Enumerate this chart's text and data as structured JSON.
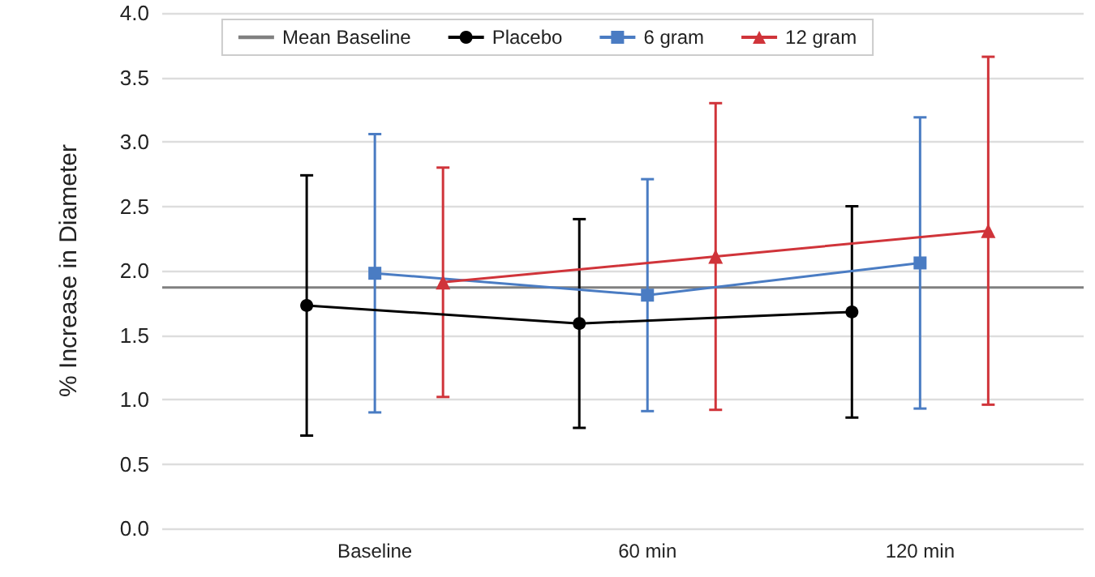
{
  "chart_data": {
    "type": "line",
    "ylabel": "% Increase in Diameter",
    "categories": [
      "Baseline",
      "60 min",
      "120 min"
    ],
    "series": [
      {
        "name": "Placebo",
        "color": "#000000",
        "marker": "circle",
        "values": [
          1.73,
          1.59,
          1.68
        ],
        "errors": [
          [
            0.72,
            2.74
          ],
          [
            0.78,
            2.4
          ],
          [
            0.86,
            2.5
          ]
        ]
      },
      {
        "name": "6 gram",
        "color": "#4a7cc3",
        "marker": "square",
        "values": [
          1.98,
          1.81,
          2.06
        ],
        "errors": [
          [
            0.9,
            3.06
          ],
          [
            0.91,
            2.71
          ],
          [
            0.93,
            3.19
          ]
        ]
      },
      {
        "name": "12 gram",
        "color": "#d0343a",
        "marker": "triangle",
        "values": [
          1.91,
          2.11,
          2.31
        ],
        "errors": [
          [
            1.02,
            2.8
          ],
          [
            0.92,
            3.3
          ],
          [
            0.96,
            3.66
          ]
        ]
      }
    ],
    "ref_lines": [
      {
        "axis": "y",
        "value": 1.87,
        "label": "Mean Baseline",
        "color": "#808080"
      }
    ],
    "ylim": [
      0,
      4
    ],
    "yticks": [
      {
        "value": 0,
        "label": "0.0"
      },
      0.5,
      {
        "value": 1,
        "label": "1.0"
      },
      1.5,
      {
        "value": 2,
        "label": "2.0"
      },
      2.5,
      {
        "value": 3,
        "label": "3.0"
      },
      3.5,
      {
        "value": 4,
        "label": "4.0"
      }
    ],
    "grid": "y",
    "legend": "top"
  }
}
